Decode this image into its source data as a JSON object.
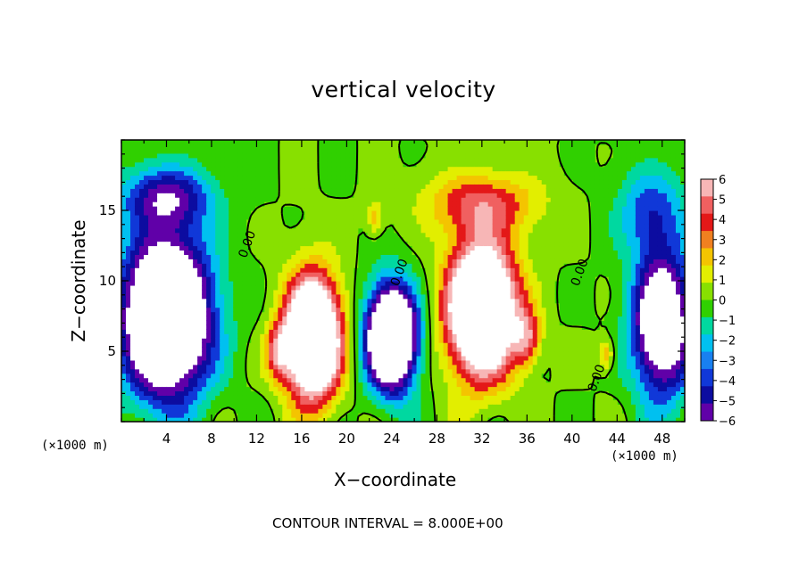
{
  "chart_data": {
    "type": "heatmap",
    "title": "vertical velocity",
    "xlabel": "X−coordinate",
    "ylabel": "Z−coordinate",
    "x_unit_note": "(×1000 m)",
    "y_unit_note": "(×1000 m)",
    "xlim": [
      0,
      50
    ],
    "ylim": [
      0,
      20
    ],
    "xticks": [
      4,
      8,
      12,
      16,
      20,
      24,
      28,
      32,
      36,
      40,
      44,
      48
    ],
    "yticks": [
      5,
      10,
      15
    ],
    "colorbar": {
      "ticks": [
        6,
        5,
        4,
        3,
        2,
        1,
        0,
        -1,
        -2,
        -3,
        -4,
        -5,
        -6
      ],
      "tick_labels": [
        "6",
        "5",
        "4",
        "3",
        "2",
        "1",
        "0",
        "−1",
        "−2",
        "−3",
        "−4",
        "−5",
        "−6"
      ],
      "colors": [
        "#f7b6b6",
        "#f06060",
        "#e41818",
        "#f08020",
        "#f4c400",
        "#e2ee00",
        "#88e000",
        "#30d000",
        "#00d8a0",
        "#00c0f0",
        "#1880f0",
        "#1038d8",
        "#0c0ca0",
        "#6000a8"
      ]
    },
    "contour_label": "0.00",
    "contour_label_positions_data": [
      [
        11.5,
        12.5
      ],
      [
        25,
        10.5
      ],
      [
        41,
        10.5
      ],
      [
        42.5,
        3
      ]
    ],
    "features": [
      {
        "kind": "updraft",
        "x": 17,
        "z": 6,
        "sx": 2.4,
        "sz": 4.2,
        "amp": 14
      },
      {
        "kind": "updraft",
        "x": 32,
        "z": 8,
        "sx": 3.0,
        "sz": 4.6,
        "amp": 14
      },
      {
        "kind": "updraft",
        "x": 32,
        "z": 15.5,
        "sx": 5,
        "sz": 2.2,
        "amp": 4
      },
      {
        "kind": "updraft",
        "x": 14,
        "z": 5,
        "sx": 1.2,
        "sz": 2,
        "amp": 4
      },
      {
        "kind": "updraft",
        "x": 36,
        "z": 6,
        "sx": 1.2,
        "sz": 2,
        "amp": 4
      },
      {
        "kind": "updraft",
        "x": 22.5,
        "z": 14.5,
        "sx": 0.7,
        "sz": 1.2,
        "amp": 2.5
      },
      {
        "kind": "updraft",
        "x": 43,
        "z": 4.8,
        "sx": 0.7,
        "sz": 1.2,
        "amp": 3
      },
      {
        "kind": "downdraft",
        "x": 4,
        "z": 7.5,
        "sx": 3.8,
        "sz": 5.5,
        "amp": -14
      },
      {
        "kind": "downdraft",
        "x": 24,
        "z": 6,
        "sx": 2.2,
        "sz": 3.6,
        "amp": -14
      },
      {
        "kind": "downdraft",
        "x": 48,
        "z": 7,
        "sx": 2.6,
        "sz": 5,
        "amp": -10
      },
      {
        "kind": "downdraft",
        "x": 4,
        "z": 16,
        "sx": 4,
        "sz": 2.2,
        "amp": -5
      },
      {
        "kind": "downdraft",
        "x": 47,
        "z": 15,
        "sx": 3,
        "sz": 3,
        "amp": -3.5
      }
    ],
    "colorbar_visible": true,
    "grid": false,
    "footer": "CONTOUR INTERVAL = 8.000E+00"
  }
}
